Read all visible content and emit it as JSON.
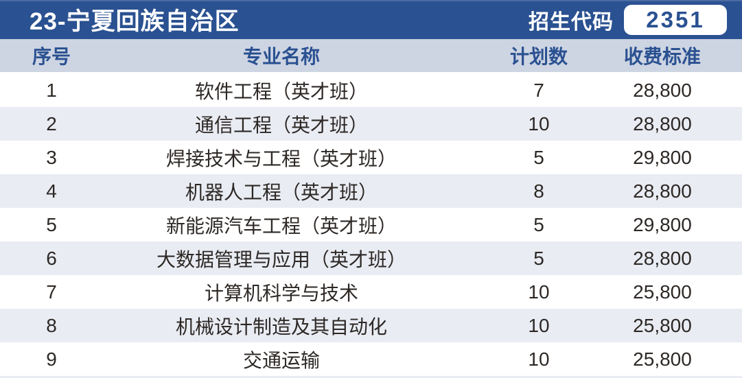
{
  "header": {
    "title": "23-宁夏回族自治区",
    "code_label": "招生代码",
    "code_value": "2351"
  },
  "table": {
    "columns": [
      "序号",
      "专业名称",
      "计划数",
      "收费标准"
    ],
    "rows": [
      {
        "no": "1",
        "major": "软件工程（英才班）",
        "plan": "7",
        "fee": "28,800"
      },
      {
        "no": "2",
        "major": "通信工程（英才班）",
        "plan": "10",
        "fee": "28,800"
      },
      {
        "no": "3",
        "major": "焊接技术与工程（英才班）",
        "plan": "5",
        "fee": "29,800"
      },
      {
        "no": "4",
        "major": "机器人工程（英才班）",
        "plan": "8",
        "fee": "28,800"
      },
      {
        "no": "5",
        "major": "新能源汽车工程（英才班）",
        "plan": "5",
        "fee": "29,800"
      },
      {
        "no": "6",
        "major": "大数据管理与应用（英才班）",
        "plan": "5",
        "fee": "28,800"
      },
      {
        "no": "7",
        "major": "计算机科学与技术",
        "plan": "10",
        "fee": "25,800"
      },
      {
        "no": "8",
        "major": "机械设计制造及其自动化",
        "plan": "10",
        "fee": "25,800"
      },
      {
        "no": "9",
        "major": "交通运输",
        "plan": "10",
        "fee": "25,800"
      }
    ]
  },
  "colors": {
    "accent_blue": "#2a5191",
    "header_row_bg": "#cdd4e2",
    "alt_row_bg": "#e9ecf3",
    "row_bg": "#ffffff",
    "data_text": "#2d2825",
    "badge_bg": "#ffffff"
  }
}
